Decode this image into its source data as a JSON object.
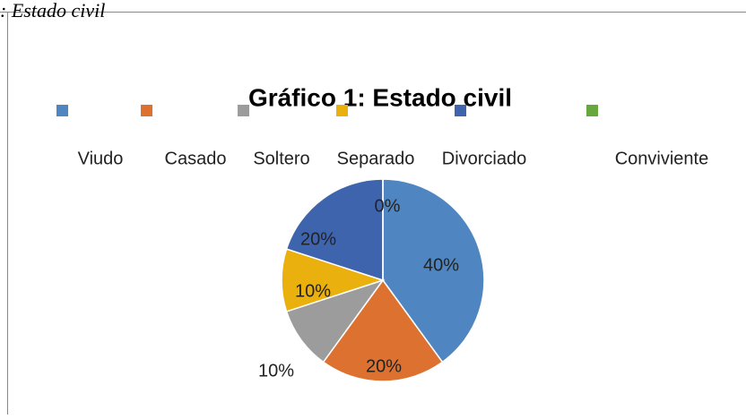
{
  "caption": ": Estado civil",
  "chart_data": {
    "type": "pie",
    "title": "Gráfico 1: Estado civil",
    "categories": [
      "Viudo",
      "Casado",
      "Soltero",
      "Separado",
      "Divorciado",
      "Conviviente"
    ],
    "values": [
      40,
      20,
      10,
      10,
      20,
      0
    ],
    "value_labels": [
      "40%",
      "20%",
      "10%",
      "10%",
      "20%",
      "0%"
    ],
    "colors": [
      "#4f86c2",
      "#dd7230",
      "#9c9c9c",
      "#e9b00e",
      "#3f64ae",
      "#66a83e"
    ],
    "legend": "top"
  }
}
